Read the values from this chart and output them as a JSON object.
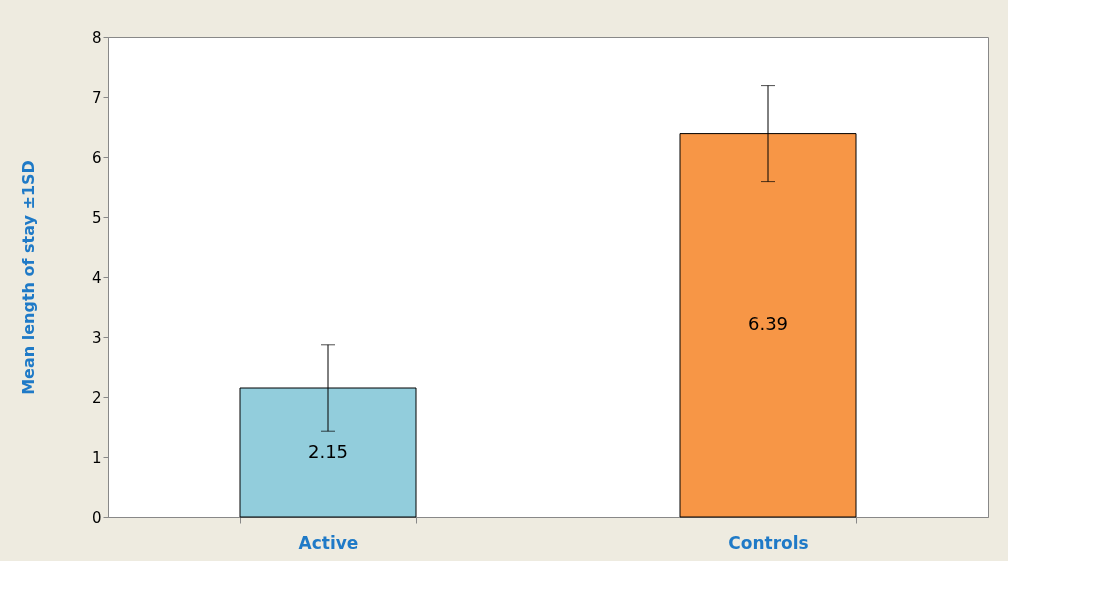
{
  "chart_data": {
    "type": "bar",
    "ylabel": "Mean length of stay  ±1SD",
    "categories": [
      "Active",
      "Controls"
    ],
    "values": [
      2.15,
      6.39
    ],
    "colors": [
      "#92cddc",
      "#f79646"
    ],
    "errors": [
      0.72,
      0.8
    ],
    "ylim": [
      0,
      8
    ],
    "yticks": [
      0,
      1,
      2,
      3,
      4,
      5,
      6,
      7,
      8
    ],
    "data_labels": true,
    "grid": false,
    "legend": false
  }
}
